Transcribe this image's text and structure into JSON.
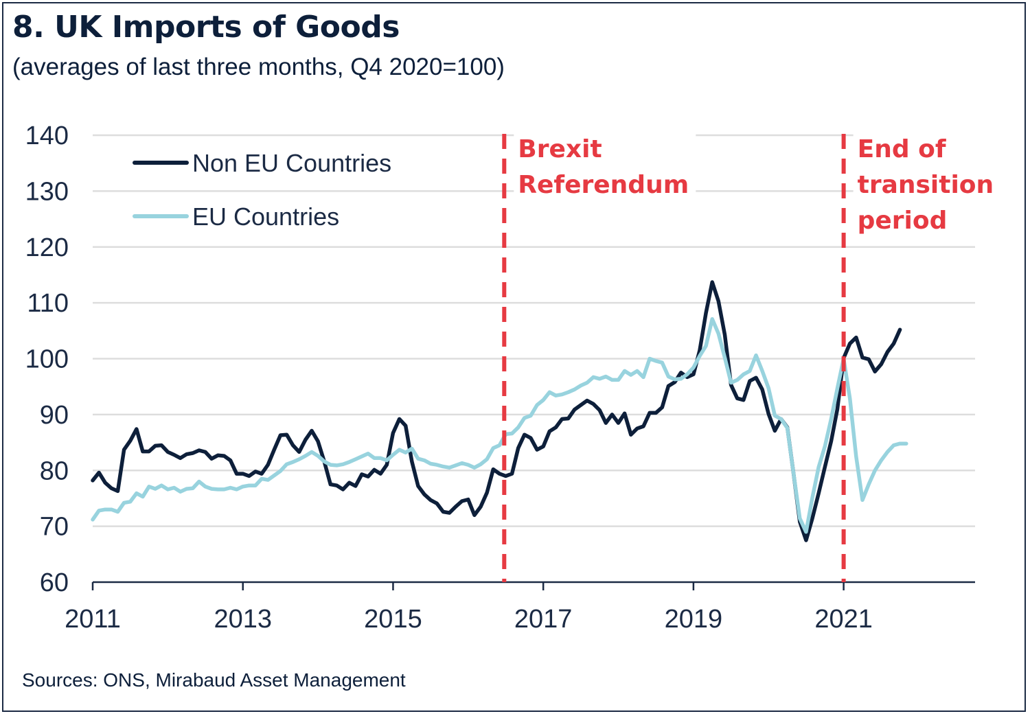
{
  "header": {
    "title": "8. UK Imports of Goods",
    "subtitle": "(averages of last three months, Q4 2020=100)"
  },
  "footer": {
    "source": "Sources: ONS, Mirabaud Asset Management"
  },
  "colors": {
    "non_eu": "#0d1f3a",
    "eu": "#98d3de",
    "annotation": "#e63a42",
    "grid": "#dddddd",
    "axis": "#1b2a44"
  },
  "chart_data": {
    "type": "line",
    "title": "8. UK Imports of Goods",
    "subtitle": "(averages of last three months, Q4 2020=100)",
    "xlabel": "",
    "ylabel": "",
    "x_start": "2011-01",
    "x_frequency": "monthly",
    "xlim": [
      2011.0,
      2022.75
    ],
    "ylim": [
      60,
      140
    ],
    "grid": true,
    "legend_position": "top-left",
    "x_ticks": [
      2011,
      2013,
      2015,
      2017,
      2019,
      2021
    ],
    "x_tick_labels": [
      "2011",
      "2013",
      "2015",
      "2017",
      "2019",
      "2021"
    ],
    "y_ticks": [
      60,
      70,
      80,
      90,
      100,
      110,
      120,
      130,
      140
    ],
    "y_tick_labels": [
      "60",
      "70",
      "80",
      "90",
      "100",
      "110",
      "120",
      "130",
      "140"
    ],
    "series": [
      {
        "name": "Non EU Countries",
        "key": "non_eu",
        "values": [
          78.2,
          79.6,
          77.8,
          76.8,
          76.3,
          83.7,
          85.3,
          87.4,
          83.4,
          83.4,
          84.4,
          84.5,
          83.3,
          82.8,
          82.2,
          82.9,
          83.1,
          83.6,
          83.3,
          82.1,
          82.7,
          82.6,
          81.8,
          79.4,
          79.4,
          79.0,
          79.8,
          79.4,
          81.0,
          83.7,
          86.3,
          86.4,
          84.5,
          83.3,
          85.5,
          87.1,
          85.2,
          81.6,
          77.5,
          77.3,
          76.6,
          77.8,
          77.2,
          79.3,
          78.9,
          80.1,
          79.4,
          81.0,
          86.7,
          89.2,
          88.0,
          81.6,
          77.2,
          75.7,
          74.7,
          74.1,
          72.6,
          72.4,
          73.5,
          74.5,
          74.8,
          72.0,
          73.5,
          76.0,
          80.2,
          79.4,
          79.0,
          79.4,
          84.0,
          86.4,
          85.8,
          83.7,
          84.3,
          87.0,
          87.7,
          89.2,
          89.3,
          90.9,
          91.7,
          92.5,
          91.9,
          90.8,
          88.5,
          90.0,
          88.5,
          90.2,
          86.4,
          87.5,
          87.9,
          90.3,
          90.3,
          91.3,
          95.1,
          95.8,
          97.5,
          96.7,
          97.2,
          101.5,
          108.2,
          113.7,
          110.3,
          104.3,
          95.3,
          92.9,
          92.6,
          96.0,
          96.6,
          94.5,
          90.1,
          87.1,
          89.2,
          87.7,
          79.4,
          70.8,
          67.5,
          71.4,
          75.9,
          80.6,
          85.2,
          91.0,
          100.1,
          102.7,
          103.8,
          100.2,
          99.9,
          97.7,
          99.0,
          101.2,
          102.7,
          105.2
        ]
      },
      {
        "name": "EU Countries",
        "key": "eu",
        "values": [
          71.2,
          72.8,
          73.0,
          73.0,
          72.6,
          74.2,
          74.4,
          75.9,
          75.3,
          77.1,
          76.7,
          77.3,
          76.6,
          76.9,
          76.2,
          76.7,
          76.8,
          78.0,
          77.1,
          76.7,
          76.6,
          76.6,
          76.9,
          76.6,
          77.1,
          77.3,
          77.3,
          78.5,
          78.3,
          79.1,
          79.9,
          81.1,
          81.5,
          82.0,
          82.6,
          83.3,
          82.6,
          81.6,
          81.0,
          80.9,
          81.1,
          81.5,
          82.0,
          82.5,
          83.0,
          82.2,
          82.2,
          81.8,
          82.8,
          83.7,
          83.2,
          83.9,
          82.1,
          81.8,
          81.2,
          81.0,
          80.7,
          80.5,
          80.9,
          81.3,
          81.0,
          80.5,
          81.1,
          82.0,
          84.0,
          84.5,
          86.5,
          86.6,
          87.7,
          89.4,
          89.8,
          91.7,
          92.6,
          94.0,
          93.4,
          93.6,
          94.0,
          94.5,
          95.2,
          95.7,
          96.7,
          96.4,
          96.8,
          96.2,
          96.2,
          97.8,
          97.1,
          97.8,
          96.7,
          100.0,
          99.6,
          99.3,
          96.8,
          96.3,
          96.4,
          97.2,
          98.4,
          100.5,
          102.3,
          107.1,
          104.5,
          100.2,
          95.7,
          96.2,
          97.2,
          97.8,
          100.6,
          97.8,
          94.7,
          89.8,
          89.2,
          87.6,
          79.4,
          71.4,
          69.0,
          75.1,
          80.6,
          84.3,
          89.2,
          94.7,
          100.0,
          92.9,
          82.5,
          74.7,
          77.5,
          80.0,
          81.8,
          83.3,
          84.5,
          84.8,
          84.8
        ]
      }
    ],
    "annotations": [
      {
        "key": "brexit",
        "x": 2016.48,
        "lines": [
          "Brexit",
          "Referendum"
        ]
      },
      {
        "key": "transition",
        "x": 2021.0,
        "lines": [
          "End of",
          "transition",
          "period"
        ]
      }
    ]
  }
}
